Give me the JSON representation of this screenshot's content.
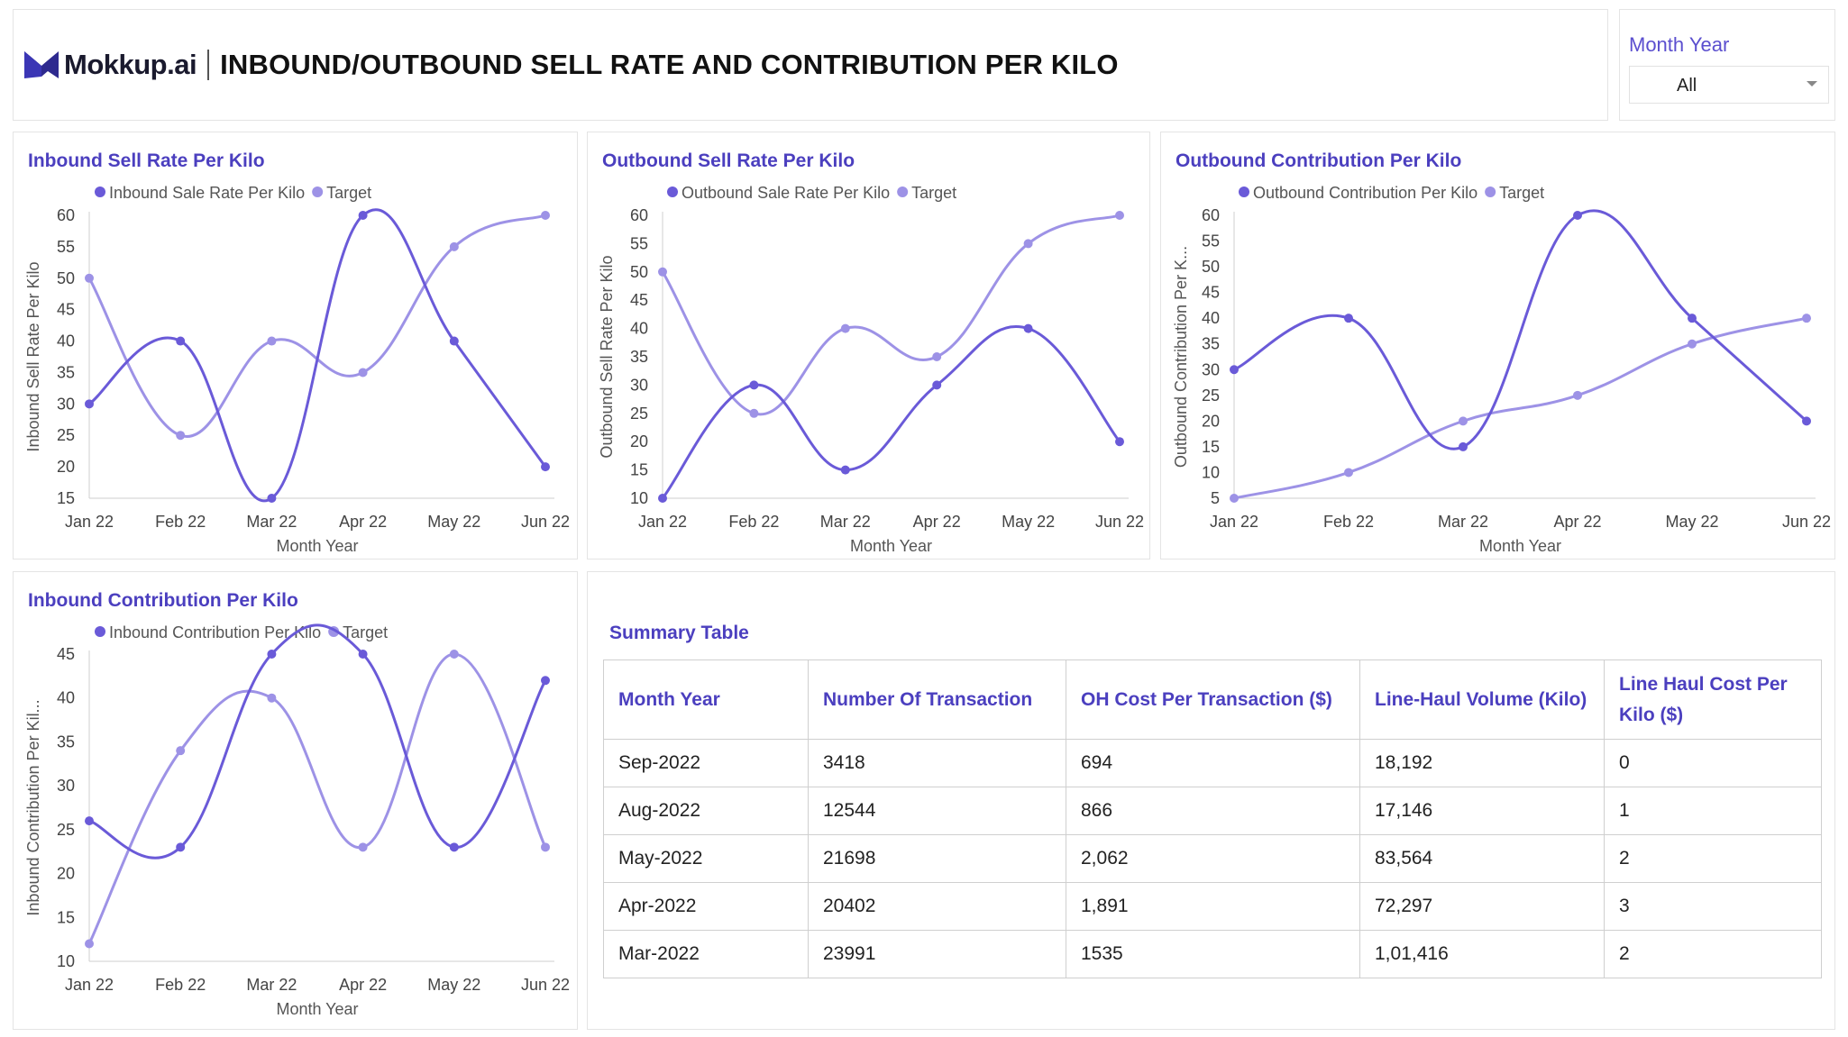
{
  "brand": {
    "name": "Mokkup.ai"
  },
  "header": {
    "title": "INBOUND/OUTBOUND SELL RATE AND CONTRIBUTION PER KILO"
  },
  "filter": {
    "label": "Month Year",
    "value": "All"
  },
  "colors": {
    "primary": "#6a5ad8",
    "target": "#9d92e6",
    "title": "#4b3fbf"
  },
  "charts": [
    {
      "title": "Inbound Sell Rate Per Kilo",
      "chart_data": {
        "type": "line",
        "categories": [
          "Jan 22",
          "Feb 22",
          "Mar 22",
          "Apr 22",
          "May 22",
          "Jun 22"
        ],
        "xlabel": "Month Year",
        "ylabel": "Inbound Sell Rate Per Kilo",
        "ylim": [
          15,
          60
        ],
        "yticks": [
          15,
          20,
          25,
          30,
          35,
          40,
          45,
          50,
          55,
          60
        ],
        "series": [
          {
            "name": "Inbound Sale Rate Per Kilo",
            "values": [
              30,
              40,
              15,
              60,
              40,
              20
            ]
          },
          {
            "name": "Target",
            "values": [
              50,
              25,
              40,
              35,
              55,
              60
            ]
          }
        ],
        "legend": "top-left",
        "grid": false
      }
    },
    {
      "title": "Outbound Sell Rate Per Kilo",
      "chart_data": {
        "type": "line",
        "categories": [
          "Jan 22",
          "Feb 22",
          "Mar 22",
          "Apr 22",
          "May 22",
          "Jun 22"
        ],
        "xlabel": "Month Year",
        "ylabel": "Outbound Sell Rate Per Kilo",
        "ylim": [
          10,
          60
        ],
        "yticks": [
          10,
          15,
          20,
          25,
          30,
          35,
          40,
          45,
          50,
          55,
          60
        ],
        "series": [
          {
            "name": "Outbound  Sale Rate Per Kilo",
            "values": [
              10,
              30,
              15,
              30,
              40,
              20
            ]
          },
          {
            "name": "Target",
            "values": [
              50,
              25,
              40,
              35,
              55,
              60
            ]
          }
        ],
        "legend": "top-left",
        "grid": false
      }
    },
    {
      "title": "Outbound Contribution Per Kilo",
      "chart_data": {
        "type": "line",
        "categories": [
          "Jan 22",
          "Feb 22",
          "Mar 22",
          "Apr 22",
          "May 22",
          "Jun 22"
        ],
        "xlabel": "Month Year",
        "ylabel": "Outbound Contribution Per K...",
        "ylim": [
          5,
          60
        ],
        "yticks": [
          5,
          10,
          15,
          20,
          25,
          30,
          35,
          40,
          45,
          50,
          55,
          60
        ],
        "series": [
          {
            "name": "Outbound Contribution Per Kilo",
            "values": [
              30,
              40,
              15,
              60,
              40,
              20
            ]
          },
          {
            "name": "Target",
            "values": [
              5,
              10,
              20,
              25,
              35,
              40
            ]
          }
        ],
        "legend": "top-left",
        "grid": false
      }
    },
    {
      "title": "Inbound Contribution Per Kilo",
      "chart_data": {
        "type": "line",
        "categories": [
          "Jan 22",
          "Feb 22",
          "Mar 22",
          "Apr 22",
          "May 22",
          "Jun 22"
        ],
        "xlabel": "Month Year",
        "ylabel": "Inbound Contribution Per Kil...",
        "ylim": [
          10,
          45
        ],
        "yticks": [
          10,
          15,
          20,
          25,
          30,
          35,
          40,
          45
        ],
        "series": [
          {
            "name": "Inbound Contribution Per Kilo",
            "values": [
              26,
              23,
              45,
              45,
              23,
              42
            ]
          },
          {
            "name": "Target",
            "values": [
              12,
              34,
              40,
              23,
              45,
              23
            ]
          }
        ],
        "legend": "top-left",
        "grid": false
      }
    }
  ],
  "summary": {
    "title": "Summary Table",
    "columns": [
      "Month Year",
      "Number Of Transaction",
      "OH Cost Per Transaction ($)",
      "Line-Haul Volume (Kilo)",
      "Line Haul Cost Per Kilo ($)"
    ],
    "rows": [
      [
        "Sep-2022",
        "3418",
        "694",
        "18,192",
        "0"
      ],
      [
        "Aug-2022",
        "12544",
        "866",
        "17,146",
        "1"
      ],
      [
        "May-2022",
        "21698",
        "2,062",
        "83,564",
        "2"
      ],
      [
        "Apr-2022",
        "20402",
        "1,891",
        "72,297",
        "3"
      ],
      [
        "Mar-2022",
        "23991",
        "1535",
        "1,01,416",
        "2"
      ]
    ]
  }
}
